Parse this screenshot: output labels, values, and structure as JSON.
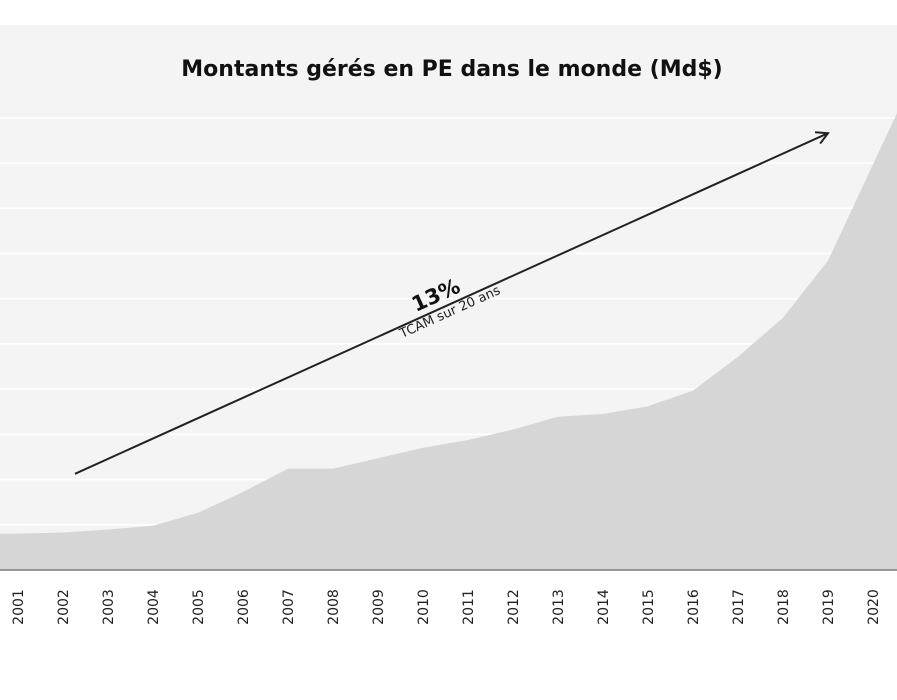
{
  "chart_data": {
    "type": "area",
    "title": "Montants gérés en PE dans le monde (Md$)",
    "xlabel": "",
    "ylabel": "",
    "x": [
      "2001",
      "2002",
      "2003",
      "2004",
      "2005",
      "2006",
      "2007",
      "2008",
      "2009",
      "2010",
      "2011",
      "2012",
      "2013",
      "2014",
      "2015",
      "2016",
      "2017",
      "2018",
      "2019",
      "2020"
    ],
    "values": [
      700,
      720,
      780,
      850,
      1100,
      1500,
      1950,
      1950,
      2150,
      2350,
      2500,
      2700,
      2950,
      3000,
      3150,
      3450,
      4100,
      4850,
      5950,
      7800
    ],
    "ylim": [
      0,
      10000
    ],
    "grid": true,
    "colors": {
      "area": "#d6d6d6",
      "plot_background": "#f4f4f4",
      "gridline": "#ffffff",
      "axis": "#999999",
      "arrow": "#222222"
    },
    "annotation": {
      "value": "13%",
      "label": "TCAM sur 20 ans",
      "arrow_from": {
        "x": "2002",
        "y": 1850
      },
      "arrow_to": {
        "x": "2019",
        "y": 8400
      }
    }
  }
}
